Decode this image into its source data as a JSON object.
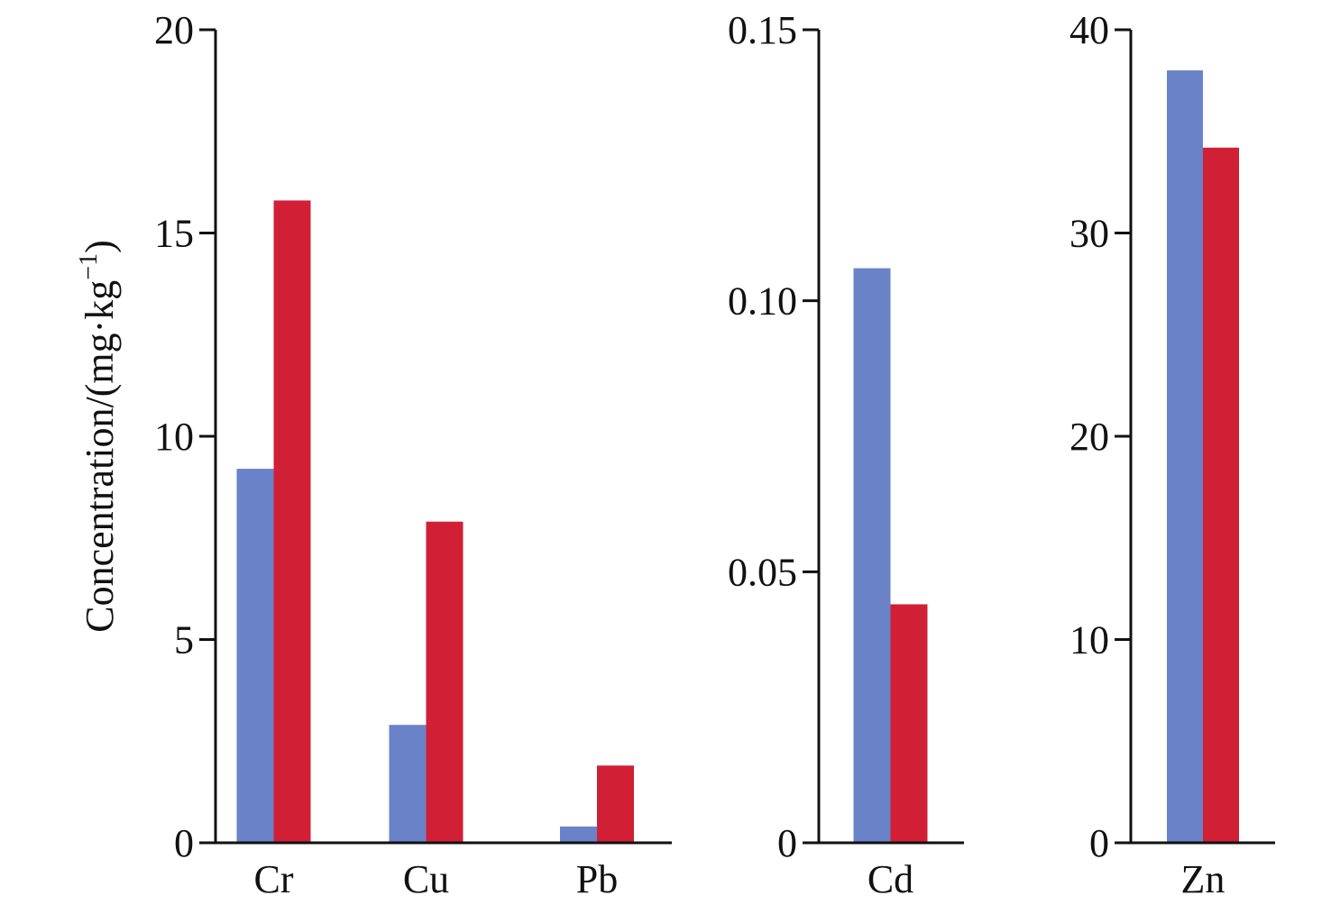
{
  "chart_data": {
    "type": "bar",
    "ylabel_main": "Concentration/(mg·kg",
    "ylabel_sup": "−1",
    "ylabel_close": ")",
    "colors": {
      "series1": "#6a82c8",
      "series2": "#d11f35"
    },
    "panels": [
      {
        "categories": [
          "Cr",
          "Cu",
          "Pb"
        ],
        "ylim": [
          0,
          20
        ],
        "yticks": [
          "0",
          "5",
          "10",
          "15",
          "20"
        ],
        "ytick_values": [
          0,
          5,
          10,
          15,
          20
        ],
        "series": [
          {
            "values": [
              9.2,
              2.9,
              0.4
            ]
          },
          {
            "values": [
              15.8,
              7.9,
              1.9
            ]
          }
        ]
      },
      {
        "categories": [
          "Cd"
        ],
        "ylim": [
          0,
          0.15
        ],
        "yticks": [
          "0",
          "0.05",
          "0.10",
          "0.15"
        ],
        "ytick_values": [
          0,
          0.05,
          0.1,
          0.15
        ],
        "series": [
          {
            "values": [
              0.106
            ]
          },
          {
            "values": [
              0.044
            ]
          }
        ]
      },
      {
        "categories": [
          "Zn"
        ],
        "ylim": [
          0,
          40
        ],
        "yticks": [
          "0",
          "10",
          "20",
          "30",
          "40"
        ],
        "ytick_values": [
          0,
          10,
          20,
          30,
          40
        ],
        "series": [
          {
            "values": [
              38.0
            ]
          },
          {
            "values": [
              34.2
            ]
          }
        ]
      }
    ]
  }
}
